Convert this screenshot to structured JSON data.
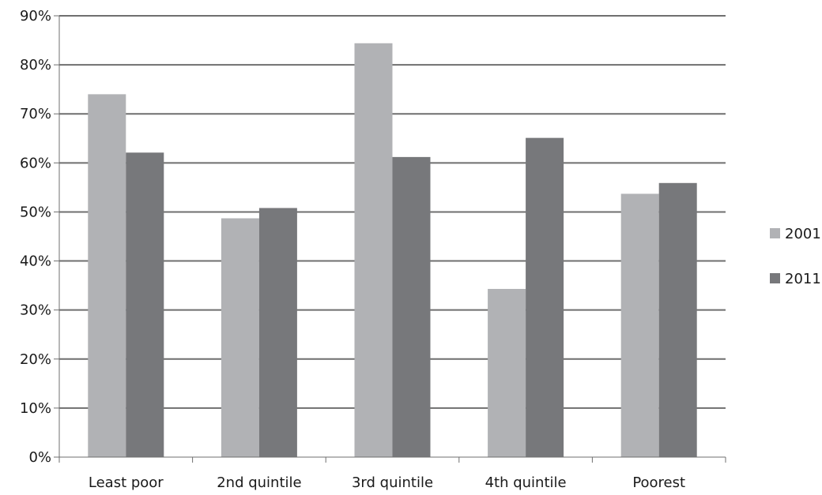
{
  "chart_data": {
    "type": "bar",
    "categories": [
      "Least poor",
      "2nd quintile",
      "3rd quintile",
      "4th quintile",
      "Poorest"
    ],
    "series": [
      {
        "name": "2001",
        "values": [
          74,
          48.7,
          84.4,
          34.3,
          53.7
        ],
        "color": "#b1b2b5"
      },
      {
        "name": "2011",
        "values": [
          62.1,
          50.8,
          61.2,
          65.1,
          55.9
        ],
        "color": "#77787b"
      }
    ],
    "yticks": [
      "0%",
      "10%",
      "20%",
      "30%",
      "40%",
      "50%",
      "60%",
      "70%",
      "80%",
      "90%"
    ],
    "ylim": [
      0,
      90
    ],
    "grid": true,
    "legend_position": "right",
    "title": "",
    "xlabel": "",
    "ylabel": ""
  }
}
